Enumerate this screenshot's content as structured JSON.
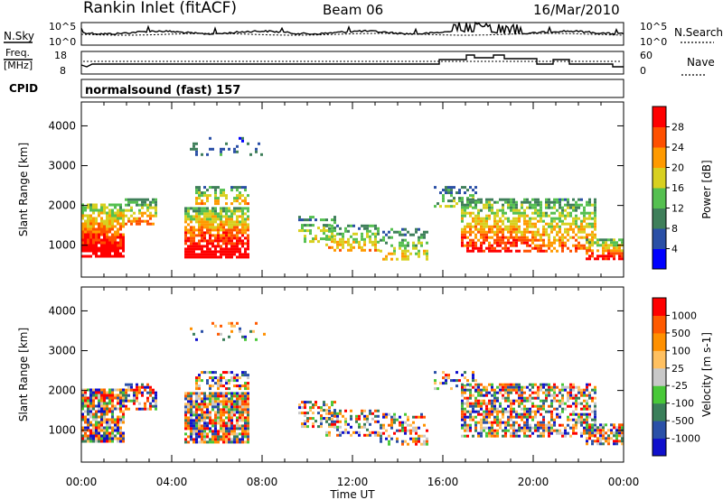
{
  "header": {
    "station": "Rankin Inlet (fitACF)",
    "beam": "Beam 06",
    "date": "16/Mar/2010"
  },
  "sky_panel": {
    "left_label": "N.Sky",
    "right_label": "N.Search",
    "left_ticks": [
      "10^5",
      "10^0"
    ],
    "right_ticks": [
      "10^5",
      "10^0"
    ]
  },
  "freq_panel": {
    "left_label_line1": "Freq.",
    "left_label_line2": "[MHz]",
    "right_label": "Nave",
    "left_ticks": [
      "18",
      "8"
    ],
    "right_ticks": [
      "60",
      "0"
    ]
  },
  "cpid_panel": {
    "label": "CPID",
    "text": "normalsound (fast) 157"
  },
  "colors": {
    "power_scale": [
      "#0000ff",
      "#2a4fa6",
      "#3f7f5a",
      "#55c050",
      "#d8d020",
      "#ff9a00",
      "#ff5000",
      "#ff0000"
    ],
    "velocity_scale": [
      "#ff0000",
      "#ff5a00",
      "#ff9000",
      "#ffc060",
      "#c8c8c8",
      "#48c838",
      "#3a7f5a",
      "#2a50a8",
      "#1010cc"
    ]
  },
  "chart_data": [
    {
      "type": "heatmap",
      "quantity": "Power",
      "ylabel": "Slant Range [km]",
      "xlabel": "",
      "y_ticks": [
        "1000",
        "2000",
        "3000",
        "4000"
      ],
      "ylim": [
        200,
        4600
      ],
      "x_ticks": [
        "00:00",
        "04:00",
        "08:00",
        "12:00",
        "16:00",
        "20:00",
        "00:00"
      ],
      "colorbar_label": "Power [dB]",
      "colorbar_ticks": [
        "4",
        "8",
        "12",
        "16",
        "20",
        "24",
        "28"
      ],
      "colorbar_range": [
        0,
        32
      ]
    },
    {
      "type": "heatmap",
      "quantity": "Velocity",
      "ylabel": "Slant Range [km]",
      "xlabel": "Time UT",
      "y_ticks": [
        "1000",
        "2000",
        "3000",
        "4000"
      ],
      "ylim": [
        200,
        4600
      ],
      "x_ticks": [
        "00:00",
        "04:00",
        "08:00",
        "12:00",
        "16:00",
        "20:00",
        "00:00"
      ],
      "colorbar_label": "Velocity [m s-1]",
      "colorbar_ticks": [
        "1000",
        "500",
        "100",
        "25",
        "-25",
        "-100",
        "-500",
        "-1000"
      ]
    }
  ]
}
